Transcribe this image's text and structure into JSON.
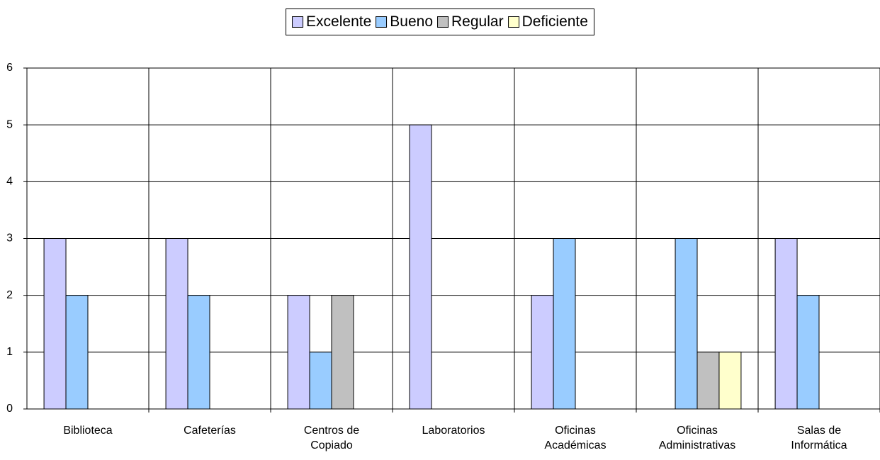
{
  "chart_data": {
    "type": "bar",
    "categories": [
      "Biblioteca",
      "Cafeterías",
      "Centros de Copiado",
      "Laboratorios",
      "Oficinas Académicas",
      "Oficinas Administrativas",
      "Salas de Informática"
    ],
    "series": [
      {
        "name": "Excelente",
        "color": "#ccccff",
        "values": [
          3,
          3,
          2,
          5,
          2,
          0,
          3
        ]
      },
      {
        "name": "Bueno",
        "color": "#99ccff",
        "values": [
          2,
          2,
          1,
          0,
          3,
          3,
          2
        ]
      },
      {
        "name": "Regular",
        "color": "#c0c0c0",
        "values": [
          0,
          0,
          2,
          0,
          0,
          1,
          0
        ]
      },
      {
        "name": "Deficiente",
        "color": "#ffffcc",
        "values": [
          0,
          0,
          0,
          0,
          0,
          1,
          0
        ]
      }
    ],
    "ylim": [
      0,
      6
    ],
    "yticks": [
      0,
      1,
      2,
      3,
      4,
      5,
      6
    ],
    "grid": true,
    "legend": "top"
  }
}
